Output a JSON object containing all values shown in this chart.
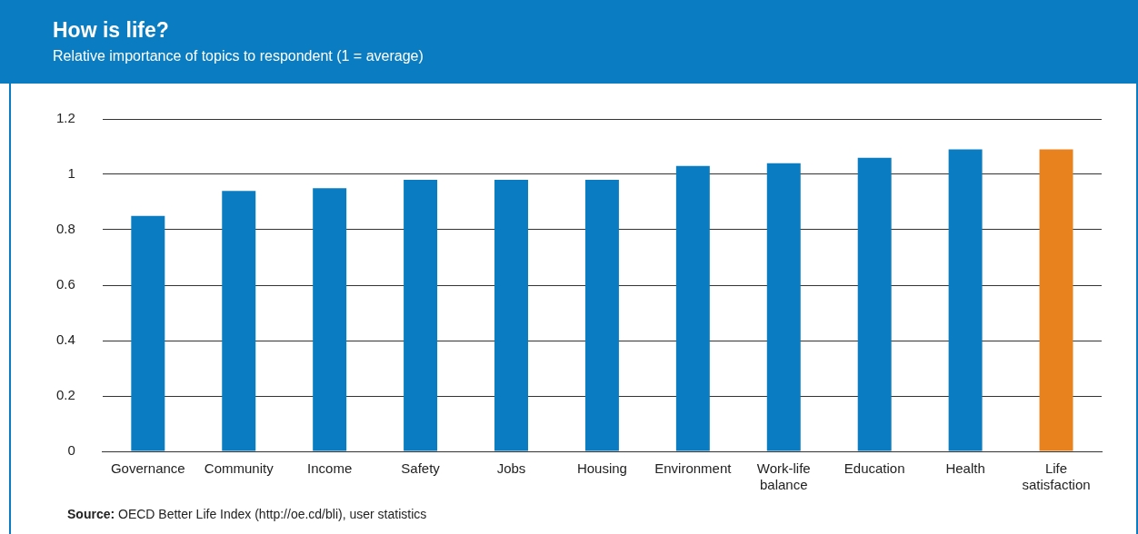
{
  "chart_data": {
    "type": "bar",
    "title": "How is life?",
    "subtitle": "Relative importance of topics to respondent (1 = average)",
    "categories": [
      "Governance",
      "Community",
      "Income",
      "Safety",
      "Jobs",
      "Housing",
      "Environment",
      "Work-life balance",
      "Education",
      "Health",
      "Life satisfaction"
    ],
    "values": [
      0.85,
      0.94,
      0.95,
      0.98,
      0.98,
      0.98,
      1.03,
      1.04,
      1.06,
      1.09,
      1.09
    ],
    "colors": [
      "#0a7dc2",
      "#0a7dc2",
      "#0a7dc2",
      "#0a7dc2",
      "#0a7dc2",
      "#0a7dc2",
      "#0a7dc2",
      "#0a7dc2",
      "#0a7dc2",
      "#0a7dc2",
      "#e8821f"
    ],
    "ylim": [
      0,
      1.2
    ],
    "yticks": [
      0,
      0.2,
      0.4,
      0.6,
      0.8,
      1,
      1.2
    ],
    "grid": "y",
    "legend": false,
    "annotations": [
      "Source: OECD Better Life Index (http://oe.cd/bli), user statistics"
    ]
  }
}
